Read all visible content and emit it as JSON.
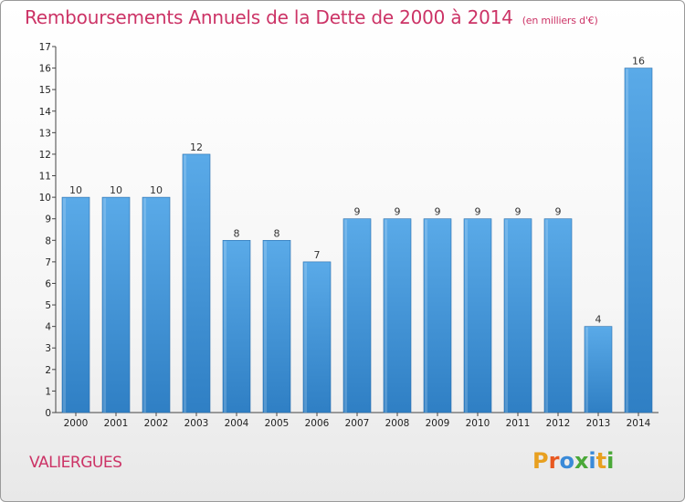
{
  "header": {
    "title": "Remboursements Annuels de la Dette de 2000 à 2014",
    "subtitle": "(en milliers d'€)"
  },
  "footer": {
    "commune": "VALIERGUES",
    "brand": "Proxiti",
    "brand_colors": [
      "#e8a020",
      "#e85820",
      "#3a8ad8",
      "#4aa838",
      "#3a8ad8",
      "#e8a020",
      "#4aa838"
    ]
  },
  "colors": {
    "bar_top": "#5aaae8",
    "bar_bottom": "#2f7fc4",
    "title": "#cc3366"
  },
  "chart_data": {
    "type": "bar",
    "title": "Remboursements Annuels de la Dette de 2000 à 2014",
    "xlabel": "",
    "ylabel": "",
    "categories": [
      "2000",
      "2001",
      "2002",
      "2003",
      "2004",
      "2005",
      "2006",
      "2007",
      "2008",
      "2009",
      "2010",
      "2011",
      "2012",
      "2013",
      "2014"
    ],
    "values": [
      10,
      10,
      10,
      12,
      8,
      8,
      7,
      9,
      9,
      9,
      9,
      9,
      9,
      4,
      16
    ],
    "data_labels": [
      "10",
      "10",
      "10",
      "12",
      "8",
      "8",
      "7",
      "9",
      "9",
      "9",
      "9",
      "9",
      "9",
      "4",
      "16"
    ],
    "ylim": [
      0,
      17
    ],
    "yticks": [
      "0",
      "1",
      "2",
      "3",
      "4",
      "5",
      "6",
      "7",
      "8",
      "9",
      "10",
      "11",
      "12",
      "13",
      "14",
      "15",
      "16",
      "17"
    ],
    "grid": false
  }
}
